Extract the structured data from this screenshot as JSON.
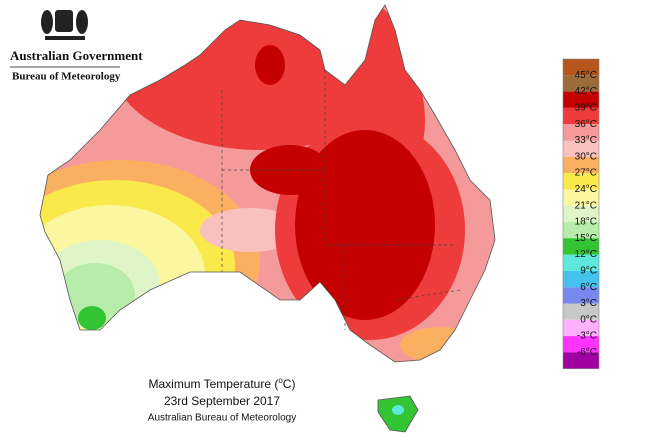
{
  "header": {
    "title": "Australian Government",
    "subtitle": "Bureau of Meteorology"
  },
  "caption": {
    "title": "Maximum Temperature (",
    "unit_sup": "o",
    "unit_end": "C)",
    "date": "23rd September 2017",
    "source": "Australian Bureau of Meteorology"
  },
  "legend": {
    "colors": [
      "#b5561d",
      "#9c6b3c",
      "#c40000",
      "#ee3b3b",
      "#f49a9a",
      "#f9c0c0",
      "#f9b060",
      "#f9e94a",
      "#fbf7a0",
      "#dff5c8",
      "#b8ecaa",
      "#33c433",
      "#5ee8dc",
      "#44c2ec",
      "#7788ee",
      "#c8c8c8",
      "#ffb0ff",
      "#ff33ff",
      "#a000a0"
    ],
    "labels": [
      "45°C",
      "42°C",
      "39°C",
      "36°C",
      "33°C",
      "30°C",
      "27°C",
      "24°C",
      "21°C",
      "18°C",
      "15°C",
      "12°C",
      "9°C",
      "6°C",
      "3°C",
      "0°C",
      "-3°C",
      "-6°C"
    ]
  }
}
